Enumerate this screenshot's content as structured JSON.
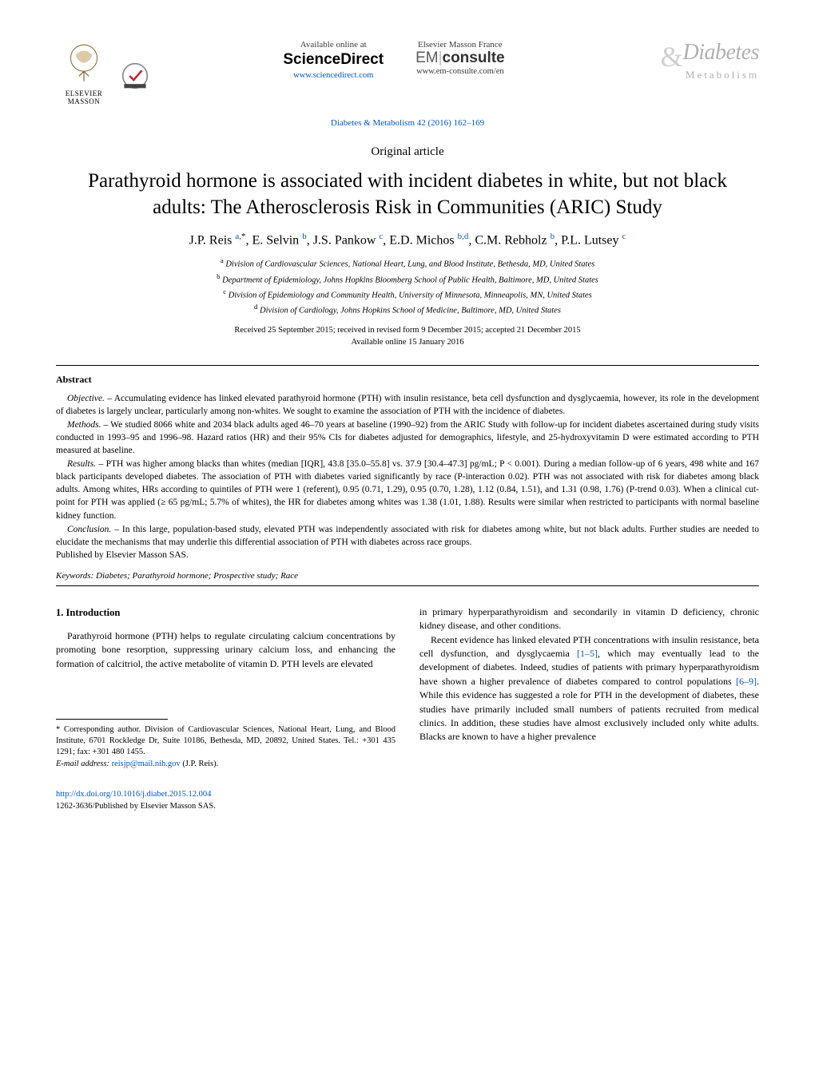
{
  "header": {
    "elsevier_label": "ELSEVIER MASSON",
    "sd_available": "Available online at",
    "sd_name": "ScienceDirect",
    "sd_url": "www.sciencedirect.com",
    "em_top": "Elsevier Masson France",
    "em_logo_light": "EM",
    "em_logo_dark": "consulte",
    "em_url": "www.em-consulte.com/en",
    "journal_amp": "&",
    "journal_main": "Diabetes",
    "journal_sub": "Metabolism",
    "citation": "Diabetes & Metabolism 42 (2016) 162–169"
  },
  "article": {
    "type": "Original article",
    "title": "Parathyroid hormone is associated with incident diabetes in white, but not black adults: The Atherosclerosis Risk in Communities (ARIC) Study",
    "authors_html": "J.P. Reis|a,*|, E. Selvin|b|, J.S. Pankow|c|, E.D. Michos|b,d|, C.M. Rebholz|b|, P.L. Lutsey|c|",
    "authors": [
      {
        "name": "J.P. Reis",
        "sup": "a,",
        "star": "*"
      },
      {
        "name": ", E. Selvin",
        "sup": "b"
      },
      {
        "name": ", J.S. Pankow",
        "sup": "c"
      },
      {
        "name": ", E.D. Michos",
        "sup": "b,d"
      },
      {
        "name": ", C.M. Rebholz",
        "sup": "b"
      },
      {
        "name": ", P.L. Lutsey",
        "sup": "c"
      }
    ],
    "affiliations": [
      {
        "sup": "a",
        "text": " Division of Cardiovascular Sciences, National Heart, Lung, and Blood Institute, Bethesda, MD, United States"
      },
      {
        "sup": "b",
        "text": " Department of Epidemiology, Johns Hopkins Bloomberg School of Public Health, Baltimore, MD, United States"
      },
      {
        "sup": "c",
        "text": " Division of Epidemiology and Community Health, University of Minnesota, Minneapolis, MN, United States"
      },
      {
        "sup": "d",
        "text": " Division of Cardiology, Johns Hopkins School of Medicine, Baltimore, MD, United States"
      }
    ],
    "dates_line1": "Received 25 September 2015; received in revised form 9 December 2015; accepted 21 December 2015",
    "dates_line2": "Available online 15 January 2016"
  },
  "abstract": {
    "heading": "Abstract",
    "objective_label": "Objective. –",
    "objective": " Accumulating evidence has linked elevated parathyroid hormone (PTH) with insulin resistance, beta cell dysfunction and dysglycaemia, however, its role in the development of diabetes is largely unclear, particularly among non-whites. We sought to examine the association of PTH with the incidence of diabetes.",
    "methods_label": "Methods. –",
    "methods": " We studied 8066 white and 2034 black adults aged 46–70 years at baseline (1990–92) from the ARIC Study with follow-up for incident diabetes ascertained during study visits conducted in 1993–95 and 1996–98. Hazard ratios (HR) and their 95% CIs for diabetes adjusted for demographics, lifestyle, and 25-hydroxyvitamin D were estimated according to PTH measured at baseline.",
    "results_label": "Results. –",
    "results": " PTH was higher among blacks than whites (median [IQR], 43.8 [35.0–55.8] vs. 37.9 [30.4–47.3] pg/mL; P < 0.001). During a median follow-up of 6 years, 498 white and 167 black participants developed diabetes. The association of PTH with diabetes varied significantly by race (P-interaction 0.02). PTH was not associated with risk for diabetes among black adults. Among whites, HRs according to quintiles of PTH were 1 (referent), 0.95 (0.71, 1.29), 0.95 (0.70, 1.28), 1.12 (0.84, 1.51), and 1.31 (0.98, 1.76) (P-trend 0.03). When a clinical cut-point for PTH was applied (≥ 65 pg/mL; 5.7% of whites), the HR for diabetes among whites was 1.38 (1.01, 1.88). Results were similar when restricted to participants with normal baseline kidney function.",
    "conclusion_label": "Conclusion. –",
    "conclusion": " In this large, population-based study, elevated PTH was independently associated with risk for diabetes among white, but not black adults. Further studies are needed to elucidate the mechanisms that may underlie this differential association of PTH with diabetes across race groups.",
    "published_by": "Published by Elsevier Masson SAS.",
    "keywords_label": "Keywords:",
    "keywords": "  Diabetes; Parathyroid hormone; Prospective study; Race"
  },
  "intro": {
    "heading": "1.  Introduction",
    "col1_p1": "Parathyroid hormone (PTH) helps to regulate circulating calcium concentrations by promoting bone resorption, suppressing urinary calcium loss, and enhancing the formation of calcitriol, the active metabolite of vitamin D. PTH levels are elevated",
    "col2_p1": "in primary hyperparathyroidism and secondarily in vitamin D deficiency, chronic kidney disease, and other conditions.",
    "col2_p2a": "Recent evidence has linked elevated PTH concentrations with insulin resistance, beta cell dysfunction, and dysglycaemia ",
    "col2_ref1": "[1–5]",
    "col2_p2b": ", which may eventually lead to the development of diabetes. Indeed, studies of patients with primary hyperparathyroidism have shown a higher prevalence of diabetes compared to control populations ",
    "col2_ref2": "[6–9]",
    "col2_p2c": ". While this evidence has suggested a role for PTH in the development of diabetes, these studies have primarily included small numbers of patients recruited from medical clinics. In addition, these studies have almost exclusively included only white adults. Blacks are known to have a higher prevalence"
  },
  "footnote": {
    "corr_label": "* Corresponding author. ",
    "corr_text": "Division of Cardiovascular Sciences, National Heart, Lung, and Blood Institute, 6701 Rockledge Dr, Suite 10186, Bethesda, MD, 20892, United States. Tel.: +301 435 1291; fax: +301 480 1455.",
    "email_label": "E-mail address: ",
    "email": "reisjp@mail.nih.gov",
    "email_suffix": " (J.P. Reis)."
  },
  "footer": {
    "doi": "http://dx.doi.org/10.1016/j.diabet.2015.12.004",
    "copyright": "1262-3636/Published by Elsevier Masson SAS."
  },
  "colors": {
    "link": "#0056c7",
    "gray": "#b0b0b0"
  }
}
